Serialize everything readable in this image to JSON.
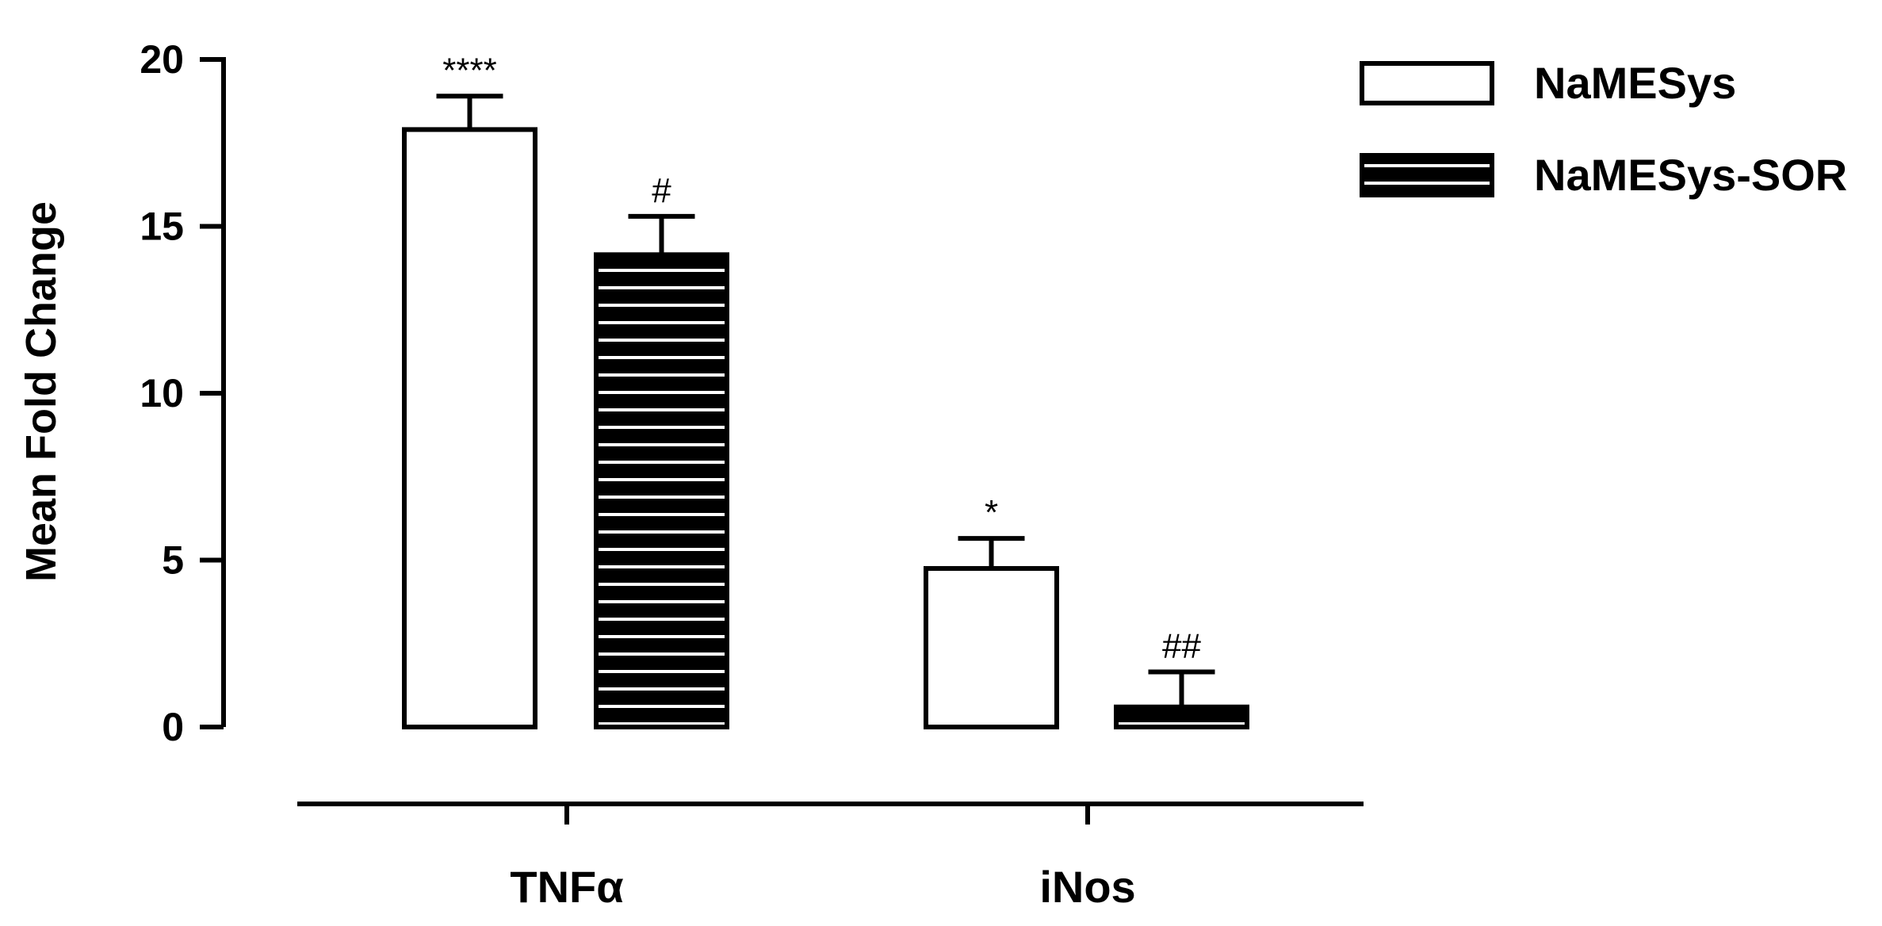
{
  "chart_data": {
    "type": "bar",
    "categories": [
      "TNFα",
      "iNos"
    ],
    "series": [
      {
        "name": "NaMESys",
        "values": [
          17.9,
          4.75
        ],
        "errors": [
          1.0,
          0.9
        ],
        "annotations": [
          "****",
          "*"
        ],
        "fill": "#ffffff",
        "pattern": "none"
      },
      {
        "name": "NaMESys-SOR",
        "values": [
          14.15,
          0.6
        ],
        "errors": [
          1.15,
          1.05
        ],
        "annotations": [
          "#",
          "##"
        ],
        "fill": "#000000",
        "pattern": "horizontal-stripes"
      }
    ],
    "title": "",
    "xlabel": "",
    "ylabel": "Mean Fold Change",
    "ylim": [
      0,
      20
    ],
    "yticks": [
      0,
      5,
      10,
      15,
      20
    ],
    "ytick_labels": [
      "0",
      "5",
      "10",
      "15",
      "20"
    ],
    "grid": false,
    "legend": "top-right"
  }
}
